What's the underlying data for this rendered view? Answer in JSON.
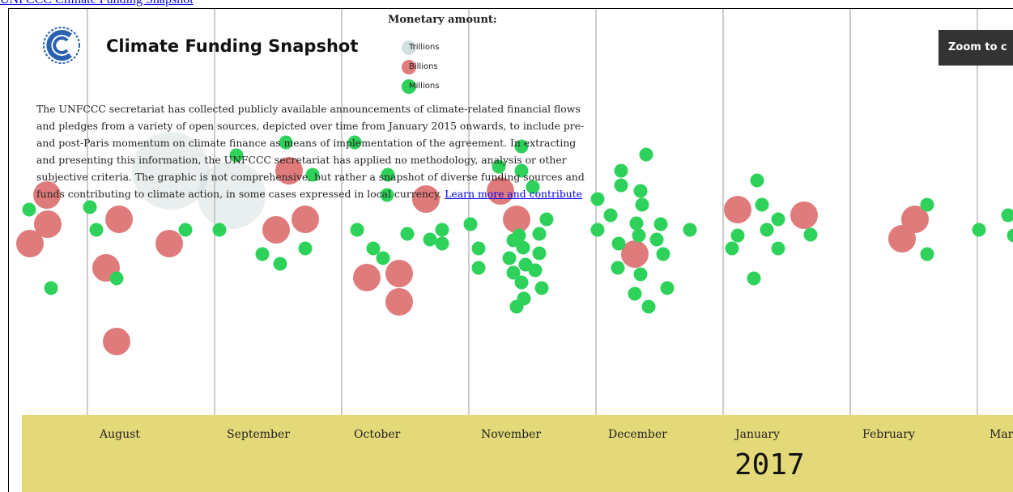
{
  "header": {
    "link": "UNFCCC Climate Funding Snapshot",
    "title": "Climate Funding Snapshot",
    "zoom_button": "Zoom to c"
  },
  "legend": {
    "title": "Monetary amount:",
    "items": [
      "Trillions",
      "Billions",
      "Millions"
    ]
  },
  "description": {
    "text": "The UNFCCC secretariat has collected publicly available announcements of climate-related financial flows and pledges from a variety of open sources, depicted over time from January 2015 onwards, to include pre- and post-Paris momentum on climate finance as means of implementation of the agreement. In extracting and presenting this information, the UNFCCC secretariat has applied no methodology, analysis or other subjective criteria. The graphic is not comprehensive, but rather a snapshot of diverse funding sources and funds contributing to climate action, in some cases expressed in local currency.",
    "link": "Learn more and contribute"
  },
  "timeline": {
    "months": [
      "August",
      "September",
      "October",
      "November",
      "December",
      "January",
      "February",
      "Mar"
    ],
    "year": "2017"
  }
}
